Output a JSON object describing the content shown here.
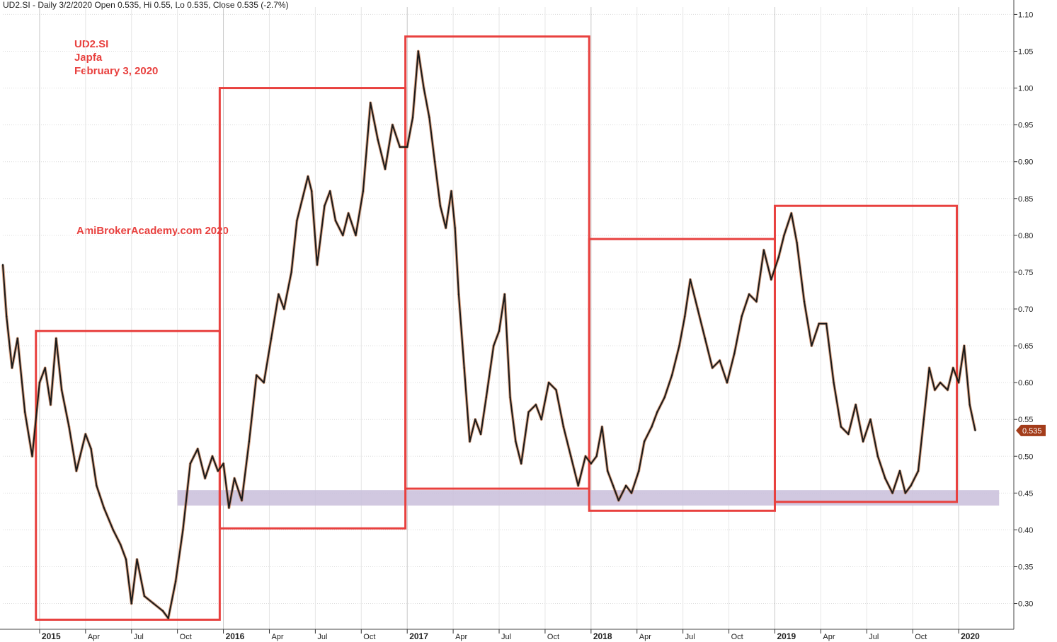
{
  "header": "UD2.SI - Daily 3/2/2020 Open 0.535, Hi 0.55, Lo 0.535, Close 0.535 (-2.7%)",
  "annotations": {
    "ticker": "UD2.SI",
    "company": "Japfa",
    "date": "February 3, 2020",
    "watermark": "AmiBrokerAcademy.com  2020"
  },
  "colors": {
    "price_line": "#1a1a1a",
    "candle_accent": "#b5561f",
    "box": "#e8413f",
    "support_band": "#c9bedb",
    "grid": "#dcdcdc",
    "last_price_bg": "#a33c1a"
  },
  "chart_data": {
    "type": "line",
    "title": "UD2.SI",
    "last_price_label": "0.535",
    "ylim": [
      0.265,
      1.11
    ],
    "yticks": [
      "0.30",
      "0.35",
      "0.40",
      "0.45",
      "0.50",
      "0.55",
      "0.60",
      "0.65",
      "0.70",
      "0.75",
      "0.80",
      "0.85",
      "0.90",
      "0.95",
      "1.00",
      "1.05",
      "1.10"
    ],
    "xlabels": [
      {
        "label": "2015",
        "t": 2015.0,
        "bold": true
      },
      {
        "label": "Apr",
        "t": 2015.25,
        "bold": false
      },
      {
        "label": "Jul",
        "t": 2015.5,
        "bold": false
      },
      {
        "label": "Oct",
        "t": 2015.75,
        "bold": false
      },
      {
        "label": "2016",
        "t": 2016.0,
        "bold": true
      },
      {
        "label": "Apr",
        "t": 2016.25,
        "bold": false
      },
      {
        "label": "Jul",
        "t": 2016.5,
        "bold": false
      },
      {
        "label": "Oct",
        "t": 2016.75,
        "bold": false
      },
      {
        "label": "2017",
        "t": 2017.0,
        "bold": true
      },
      {
        "label": "Apr",
        "t": 2017.25,
        "bold": false
      },
      {
        "label": "Jul",
        "t": 2017.5,
        "bold": false
      },
      {
        "label": "Oct",
        "t": 2017.75,
        "bold": false
      },
      {
        "label": "2018",
        "t": 2018.0,
        "bold": true
      },
      {
        "label": "Apr",
        "t": 2018.25,
        "bold": false
      },
      {
        "label": "Jul",
        "t": 2018.5,
        "bold": false
      },
      {
        "label": "Oct",
        "t": 2018.75,
        "bold": false
      },
      {
        "label": "2019",
        "t": 2019.0,
        "bold": true
      },
      {
        "label": "Apr",
        "t": 2019.25,
        "bold": false
      },
      {
        "label": "Jul",
        "t": 2019.5,
        "bold": false
      },
      {
        "label": "Oct",
        "t": 2019.75,
        "bold": false
      },
      {
        "label": "2020",
        "t": 2020.0,
        "bold": true
      }
    ],
    "series": [
      {
        "values": [
          [
            2014.8,
            0.76
          ],
          [
            2014.82,
            0.69
          ],
          [
            2014.85,
            0.62
          ],
          [
            2014.88,
            0.66
          ],
          [
            2014.92,
            0.56
          ],
          [
            2014.96,
            0.5
          ],
          [
            2015.0,
            0.6
          ],
          [
            2015.03,
            0.62
          ],
          [
            2015.06,
            0.57
          ],
          [
            2015.09,
            0.66
          ],
          [
            2015.12,
            0.59
          ],
          [
            2015.16,
            0.54
          ],
          [
            2015.2,
            0.48
          ],
          [
            2015.25,
            0.53
          ],
          [
            2015.28,
            0.51
          ],
          [
            2015.31,
            0.46
          ],
          [
            2015.35,
            0.43
          ],
          [
            2015.4,
            0.4
          ],
          [
            2015.44,
            0.38
          ],
          [
            2015.47,
            0.36
          ],
          [
            2015.5,
            0.3
          ],
          [
            2015.53,
            0.36
          ],
          [
            2015.57,
            0.31
          ],
          [
            2015.62,
            0.3
          ],
          [
            2015.67,
            0.29
          ],
          [
            2015.7,
            0.28
          ],
          [
            2015.74,
            0.33
          ],
          [
            2015.78,
            0.4
          ],
          [
            2015.82,
            0.49
          ],
          [
            2015.86,
            0.51
          ],
          [
            2015.9,
            0.47
          ],
          [
            2015.94,
            0.5
          ],
          [
            2015.97,
            0.48
          ],
          [
            2016.0,
            0.49
          ],
          [
            2016.03,
            0.43
          ],
          [
            2016.06,
            0.47
          ],
          [
            2016.1,
            0.44
          ],
          [
            2016.14,
            0.52
          ],
          [
            2016.18,
            0.61
          ],
          [
            2016.22,
            0.6
          ],
          [
            2016.26,
            0.66
          ],
          [
            2016.3,
            0.72
          ],
          [
            2016.33,
            0.7
          ],
          [
            2016.37,
            0.75
          ],
          [
            2016.4,
            0.82
          ],
          [
            2016.43,
            0.85
          ],
          [
            2016.46,
            0.88
          ],
          [
            2016.48,
            0.86
          ],
          [
            2016.51,
            0.76
          ],
          [
            2016.55,
            0.84
          ],
          [
            2016.58,
            0.86
          ],
          [
            2016.61,
            0.82
          ],
          [
            2016.65,
            0.8
          ],
          [
            2016.68,
            0.83
          ],
          [
            2016.72,
            0.8
          ],
          [
            2016.76,
            0.86
          ],
          [
            2016.8,
            0.98
          ],
          [
            2016.84,
            0.93
          ],
          [
            2016.88,
            0.89
          ],
          [
            2016.92,
            0.95
          ],
          [
            2016.96,
            0.92
          ],
          [
            2017.0,
            0.92
          ],
          [
            2017.03,
            0.96
          ],
          [
            2017.06,
            1.05
          ],
          [
            2017.09,
            1.0
          ],
          [
            2017.12,
            0.96
          ],
          [
            2017.15,
            0.9
          ],
          [
            2017.18,
            0.84
          ],
          [
            2017.21,
            0.81
          ],
          [
            2017.24,
            0.86
          ],
          [
            2017.26,
            0.81
          ],
          [
            2017.28,
            0.72
          ],
          [
            2017.31,
            0.62
          ],
          [
            2017.34,
            0.52
          ],
          [
            2017.37,
            0.55
          ],
          [
            2017.4,
            0.53
          ],
          [
            2017.43,
            0.58
          ],
          [
            2017.47,
            0.65
          ],
          [
            2017.5,
            0.67
          ],
          [
            2017.53,
            0.72
          ],
          [
            2017.56,
            0.58
          ],
          [
            2017.59,
            0.52
          ],
          [
            2017.62,
            0.49
          ],
          [
            2017.66,
            0.56
          ],
          [
            2017.7,
            0.57
          ],
          [
            2017.73,
            0.55
          ],
          [
            2017.77,
            0.6
          ],
          [
            2017.81,
            0.59
          ],
          [
            2017.85,
            0.54
          ],
          [
            2017.89,
            0.5
          ],
          [
            2017.93,
            0.46
          ],
          [
            2017.97,
            0.5
          ],
          [
            2018.0,
            0.49
          ],
          [
            2018.03,
            0.5
          ],
          [
            2018.06,
            0.54
          ],
          [
            2018.09,
            0.48
          ],
          [
            2018.12,
            0.46
          ],
          [
            2018.15,
            0.44
          ],
          [
            2018.19,
            0.46
          ],
          [
            2018.22,
            0.45
          ],
          [
            2018.26,
            0.48
          ],
          [
            2018.29,
            0.52
          ],
          [
            2018.33,
            0.54
          ],
          [
            2018.36,
            0.56
          ],
          [
            2018.4,
            0.58
          ],
          [
            2018.44,
            0.61
          ],
          [
            2018.48,
            0.65
          ],
          [
            2018.51,
            0.69
          ],
          [
            2018.54,
            0.74
          ],
          [
            2018.58,
            0.7
          ],
          [
            2018.62,
            0.66
          ],
          [
            2018.66,
            0.62
          ],
          [
            2018.7,
            0.63
          ],
          [
            2018.74,
            0.6
          ],
          [
            2018.78,
            0.64
          ],
          [
            2018.82,
            0.69
          ],
          [
            2018.86,
            0.72
          ],
          [
            2018.9,
            0.71
          ],
          [
            2018.94,
            0.78
          ],
          [
            2018.98,
            0.74
          ],
          [
            2019.02,
            0.77
          ],
          [
            2019.05,
            0.8
          ],
          [
            2019.09,
            0.83
          ],
          [
            2019.12,
            0.79
          ],
          [
            2019.16,
            0.71
          ],
          [
            2019.2,
            0.65
          ],
          [
            2019.24,
            0.68
          ],
          [
            2019.28,
            0.68
          ],
          [
            2019.32,
            0.6
          ],
          [
            2019.36,
            0.54
          ],
          [
            2019.4,
            0.53
          ],
          [
            2019.44,
            0.57
          ],
          [
            2019.48,
            0.52
          ],
          [
            2019.52,
            0.55
          ],
          [
            2019.56,
            0.5
          ],
          [
            2019.6,
            0.47
          ],
          [
            2019.64,
            0.45
          ],
          [
            2019.68,
            0.48
          ],
          [
            2019.71,
            0.45
          ],
          [
            2019.74,
            0.46
          ],
          [
            2019.78,
            0.48
          ],
          [
            2019.81,
            0.55
          ],
          [
            2019.84,
            0.62
          ],
          [
            2019.87,
            0.59
          ],
          [
            2019.9,
            0.6
          ],
          [
            2019.94,
            0.59
          ],
          [
            2019.97,
            0.62
          ],
          [
            2020.0,
            0.6
          ],
          [
            2020.03,
            0.65
          ],
          [
            2020.06,
            0.57
          ],
          [
            2020.09,
            0.535
          ]
        ]
      }
    ],
    "boxes": [
      {
        "t0": 2014.98,
        "t1": 2015.98,
        "low": 0.278,
        "high": 0.67
      },
      {
        "t0": 2015.98,
        "t1": 2016.99,
        "low": 0.402,
        "high": 1.0
      },
      {
        "t0": 2016.99,
        "t1": 2017.99,
        "low": 0.456,
        "high": 1.07
      },
      {
        "t0": 2017.99,
        "t1": 2019.0,
        "low": 0.426,
        "high": 0.795
      },
      {
        "t0": 2019.0,
        "t1": 2019.99,
        "low": 0.438,
        "high": 0.84
      }
    ],
    "support_band": {
      "t0": 2015.75,
      "t1": 2020.22,
      "low": 0.433,
      "high": 0.454
    }
  }
}
